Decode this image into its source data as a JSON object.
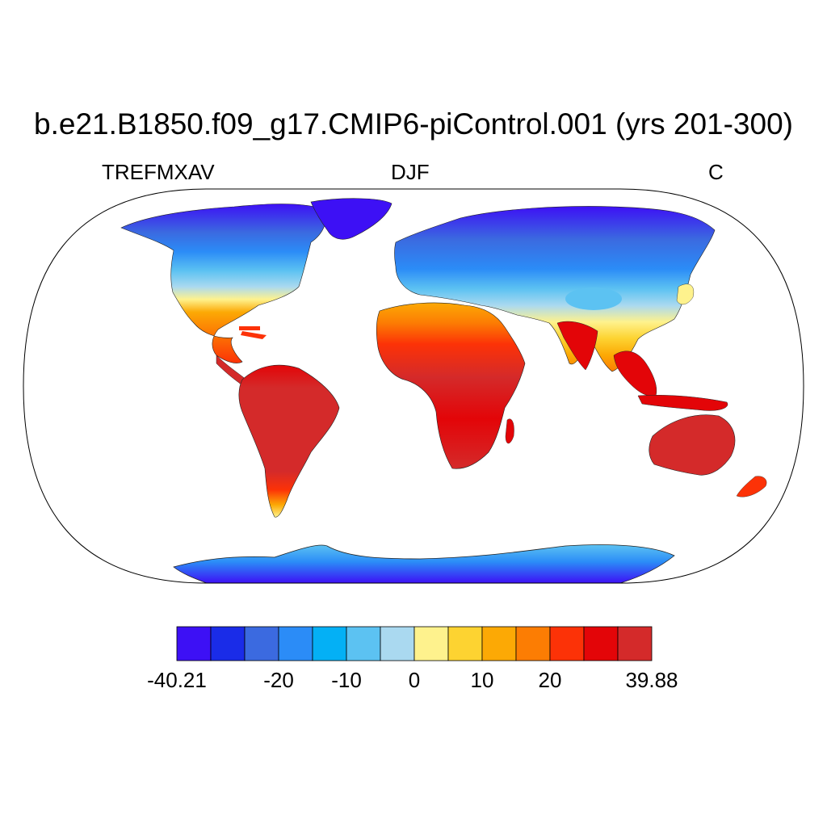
{
  "title": "b.e21.B1850.f09_g17.CMIP6-piControl.001 (yrs 201-300)",
  "left_subtitle": "TREFMXAV",
  "center_subtitle": "DJF",
  "right_subtitle": "C",
  "colorbar": {
    "min": -40.21,
    "max": 39.88,
    "colors": [
      "#3d10f5",
      "#1a2ce8",
      "#3b6ae0",
      "#2b8cf7",
      "#04b0f5",
      "#5cc2f2",
      "#aad9f0",
      "#fef28d",
      "#fdd331",
      "#fca905",
      "#fc7d03",
      "#fc3207",
      "#e30508",
      "#d42a2a"
    ],
    "tick_labels": [
      "-40.21",
      "-20",
      "-10",
      "0",
      "10",
      "20",
      "39.88"
    ],
    "tick_boundaries": [
      0,
      3,
      5,
      7,
      9,
      11,
      14
    ]
  },
  "colors": {
    "land_outline": "#222222",
    "frame": "#000000",
    "background": "#ffffff"
  }
}
